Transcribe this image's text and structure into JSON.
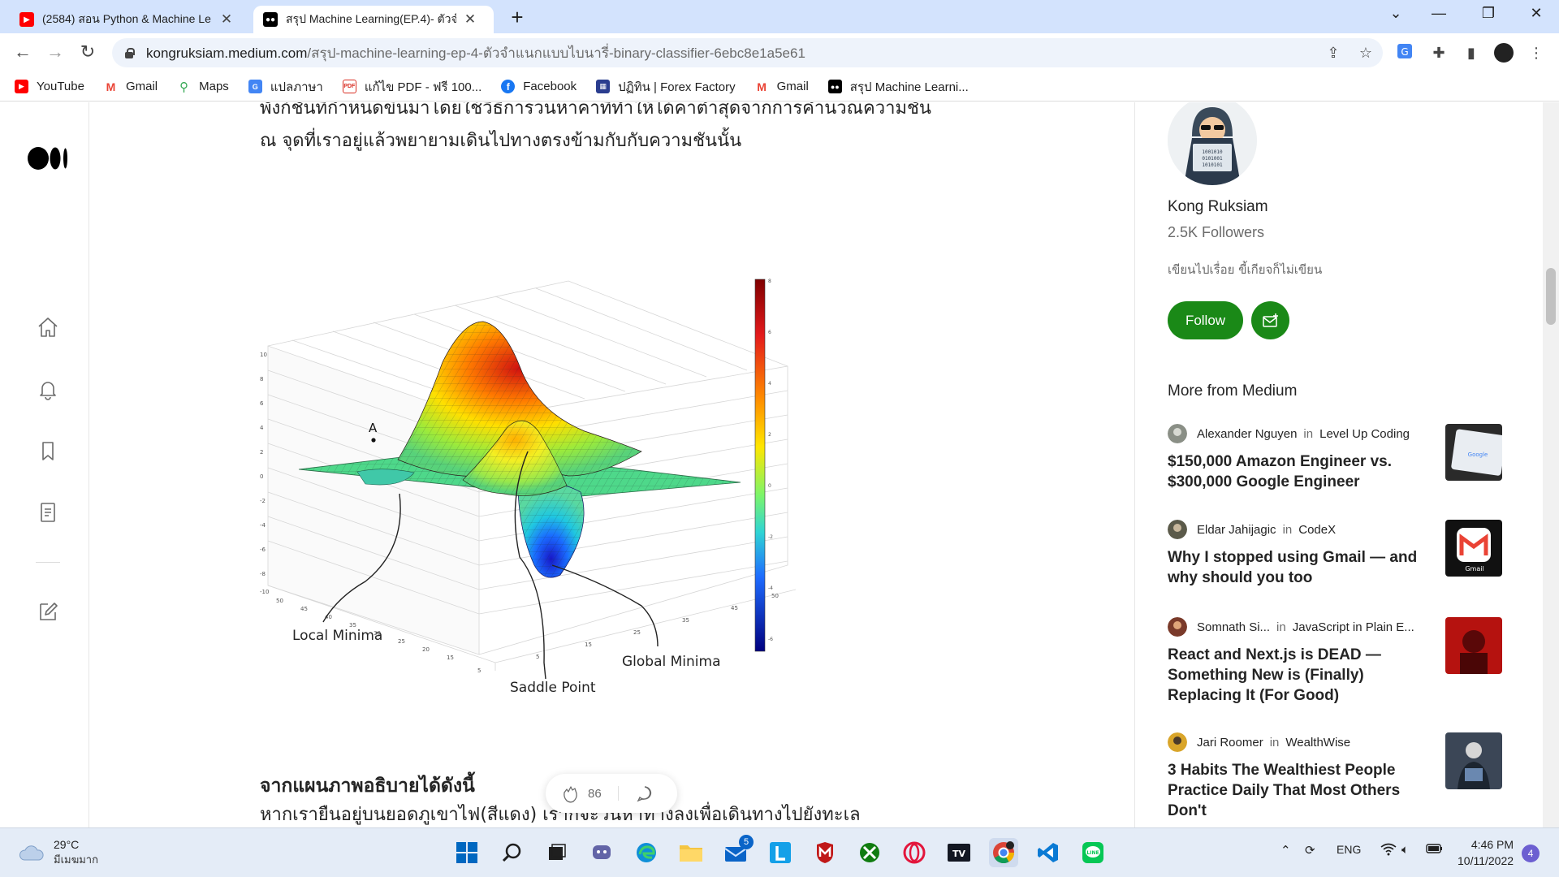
{
  "browser": {
    "tabs": [
      {
        "title": "(2584) สอน Python & Machine Le",
        "favicon": "youtube-icon",
        "active": false
      },
      {
        "title": "สรุป Machine Learning(EP.4)- ตัวจำ",
        "favicon": "medium-icon",
        "active": true
      }
    ],
    "url_host": "kongruksiam.medium.com",
    "url_path": "/สรุป-machine-learning-ep-4-ตัวจำแนกแบบไบนารี่-binary-classifier-6ebc8e1a5e61",
    "bookmarks": [
      {
        "label": "YouTube",
        "icon": "youtube-icon"
      },
      {
        "label": "Gmail",
        "icon": "gmail-icon"
      },
      {
        "label": "Maps",
        "icon": "maps-icon"
      },
      {
        "label": "แปลภาษา",
        "icon": "translate-icon"
      },
      {
        "label": "แก้ไข PDF - ฟรี 100...",
        "icon": "pdf-icon"
      },
      {
        "label": "Facebook",
        "icon": "facebook-icon"
      },
      {
        "label": "ปฏิทิน | Forex Factory",
        "icon": "calendar-icon"
      },
      {
        "label": "Gmail",
        "icon": "gmail-icon"
      },
      {
        "label": "สรุป Machine Learni...",
        "icon": "medium-icon"
      }
    ]
  },
  "article": {
    "para_top": "พังก์ชันที่กำหนดขึ้นมาโดยใช้วิธีการวนหาค่าที่ทำให้ได้ค่าต่ำสุดจากการคำนวณความชัน ณ จุดที่เราอยู่แล้วพยายามเดินไปทางตรงข้ามกับกับความชันนั้น",
    "figure": {
      "label_local": "Local Minima",
      "label_saddle": "Saddle Point",
      "label_global": "Global Minima",
      "label_a": "A"
    },
    "subheading": "จากแผนภาพอธิบายได้ดังนี้",
    "para_bottom": "หากเรายืนอยู่บนยอดภูเขาไฟ(สีแดง) เราก็จะวนหาทางลงเพื่อเดินทางไปยังทะเล",
    "clap_count": "86"
  },
  "sidebar": {
    "author_name": "Kong Ruksiam",
    "followers": "2.5K Followers",
    "bio": "เขียนไปเรื่อย ขี้เกียจก็ไม่เขียน",
    "follow_label": "Follow",
    "more_title": "More from Medium",
    "stories": [
      {
        "author": "Alexander Nguyen",
        "pub": "Level Up Coding",
        "title": "$150,000 Amazon Engineer vs. $300,000 Google Engineer"
      },
      {
        "author": "Eldar Jahijagic",
        "pub": "CodeX",
        "title": "Why I stopped using Gmail — and why should you too"
      },
      {
        "author": "Somnath Si...",
        "pub": "JavaScript in Plain E...",
        "title": "React and Next.js is DEAD — Something New is (Finally) Replacing It (For Good)"
      },
      {
        "author": "Jari Roomer",
        "pub": "WealthWise",
        "title": "3 Habits The Wealthiest People Practice Daily That Most Others Don't"
      }
    ],
    "in_word": "in"
  },
  "taskbar": {
    "temp": "29°C",
    "condition": "มีเมฆมาก",
    "lang": "ENG",
    "time": "4:46 PM",
    "date": "10/11/2022",
    "notif_count": "4",
    "mail_badge": "5"
  }
}
